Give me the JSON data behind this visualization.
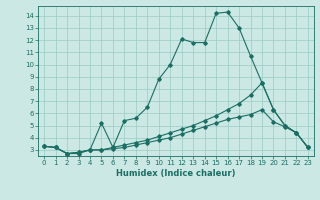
{
  "xlabel": "Humidex (Indice chaleur)",
  "background_color": "#cce8e4",
  "grid_color": "#99ccc4",
  "line_color": "#1a6e64",
  "xlim": [
    -0.5,
    23.5
  ],
  "ylim": [
    2.5,
    14.8
  ],
  "xticks": [
    0,
    1,
    2,
    3,
    4,
    5,
    6,
    7,
    8,
    9,
    10,
    11,
    12,
    13,
    14,
    15,
    16,
    17,
    18,
    19,
    20,
    21,
    22,
    23
  ],
  "yticks": [
    3,
    4,
    5,
    6,
    7,
    8,
    9,
    10,
    11,
    12,
    13,
    14
  ],
  "line1_x": [
    0,
    1,
    2,
    3,
    4,
    5,
    6,
    7,
    8,
    9,
    10,
    11,
    12,
    13,
    14,
    15,
    16,
    17,
    18,
    19,
    20,
    21,
    22,
    23
  ],
  "line1_y": [
    3.3,
    3.2,
    2.7,
    2.7,
    3.0,
    5.2,
    3.2,
    5.4,
    5.6,
    6.5,
    8.8,
    10.0,
    12.1,
    11.8,
    11.8,
    14.2,
    14.3,
    13.0,
    10.7,
    8.5,
    6.3,
    5.0,
    4.4,
    3.2
  ],
  "line2_x": [
    0,
    1,
    2,
    3,
    4,
    5,
    6,
    7,
    8,
    9,
    10,
    11,
    12,
    13,
    14,
    15,
    16,
    17,
    18,
    19,
    20,
    21,
    22,
    23
  ],
  "line2_y": [
    3.3,
    3.2,
    2.7,
    2.8,
    3.0,
    3.0,
    3.1,
    3.2,
    3.4,
    3.6,
    3.8,
    4.0,
    4.3,
    4.6,
    4.9,
    5.2,
    5.5,
    5.7,
    5.9,
    6.3,
    5.3,
    4.9,
    4.4,
    3.2
  ],
  "line3_x": [
    0,
    1,
    2,
    3,
    4,
    5,
    6,
    7,
    8,
    9,
    10,
    11,
    12,
    13,
    14,
    15,
    16,
    17,
    18,
    19,
    20,
    21,
    22,
    23
  ],
  "line3_y": [
    3.3,
    3.2,
    2.7,
    2.8,
    3.0,
    3.0,
    3.2,
    3.4,
    3.6,
    3.8,
    4.1,
    4.4,
    4.7,
    5.0,
    5.4,
    5.8,
    6.3,
    6.8,
    7.5,
    8.5,
    6.3,
    5.0,
    4.4,
    3.2
  ],
  "tick_fontsize": 5,
  "xlabel_fontsize": 6,
  "marker_size": 1.8,
  "line_width": 0.8
}
